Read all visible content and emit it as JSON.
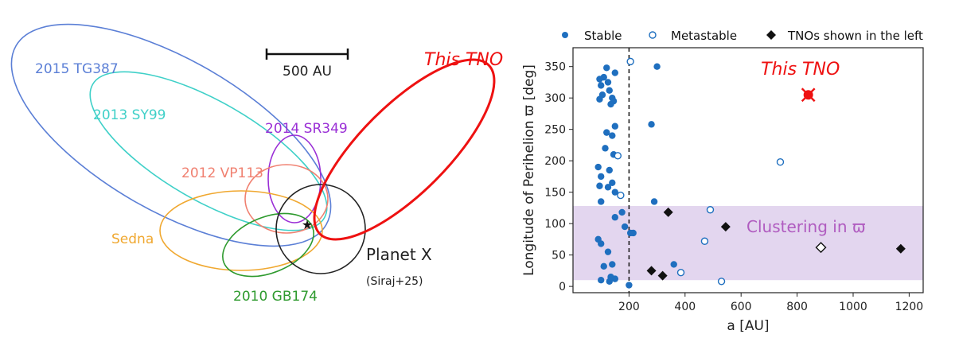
{
  "left_panel": {
    "scale_bar_label": "500 AU",
    "star_label": "",
    "orbits": [
      {
        "name": "2015 TG387",
        "color": "#5b7fd6"
      },
      {
        "name": "2013 SY99",
        "color": "#3fd0c8"
      },
      {
        "name": "2014 SR349",
        "color": "#9a2fd6"
      },
      {
        "name": "2012 VP113",
        "color": "#f08070"
      },
      {
        "name": "Sedna",
        "color": "#f0a830"
      },
      {
        "name": "2010 GB174",
        "color": "#2e9a2e"
      },
      {
        "name": "This TNO",
        "color": "#ee1111"
      }
    ],
    "planet_x": {
      "name": "Planet X",
      "ref": "(Siraj+25)",
      "color": "#222222"
    }
  },
  "chart_data": {
    "type": "scatter",
    "xlabel": "a [AU]",
    "ylabel": "Longitude of Perihelion ϖ [deg]",
    "xlim": [
      0,
      1250
    ],
    "ylim": [
      -10,
      380
    ],
    "xticks": [
      200,
      400,
      600,
      800,
      1000,
      1200
    ],
    "yticks": [
      0,
      50,
      100,
      150,
      200,
      250,
      300,
      350
    ],
    "vline_x": 200,
    "band": {
      "y0": 10,
      "y1": 128,
      "label": "Clustering in ϖ",
      "color": "#e3d6ef",
      "label_color": "#b05cc0"
    },
    "annotation": {
      "text": "This TNO",
      "x": 840,
      "y": 305,
      "color": "#ee1111"
    },
    "legend": {
      "placement": "top",
      "entries": [
        "Stable",
        "Metastable",
        "TNOs shown in the left"
      ]
    },
    "series": [
      {
        "name": "Stable",
        "marker": "filled-circle",
        "color": "#1f6fbf",
        "points": [
          [
            120,
            348
          ],
          [
            150,
            340
          ],
          [
            110,
            333
          ],
          [
            95,
            330
          ],
          [
            125,
            325
          ],
          [
            100,
            320
          ],
          [
            130,
            312
          ],
          [
            105,
            305
          ],
          [
            140,
            300
          ],
          [
            95,
            298
          ],
          [
            145,
            295
          ],
          [
            135,
            290
          ],
          [
            300,
            350
          ],
          [
            150,
            255
          ],
          [
            120,
            245
          ],
          [
            140,
            240
          ],
          [
            280,
            258
          ],
          [
            115,
            220
          ],
          [
            145,
            210
          ],
          [
            90,
            190
          ],
          [
            130,
            185
          ],
          [
            100,
            175
          ],
          [
            140,
            165
          ],
          [
            95,
            160
          ],
          [
            125,
            158
          ],
          [
            150,
            150
          ],
          [
            290,
            135
          ],
          [
            100,
            135
          ],
          [
            175,
            118
          ],
          [
            150,
            110
          ],
          [
            185,
            95
          ],
          [
            205,
            85
          ],
          [
            215,
            85
          ],
          [
            90,
            75
          ],
          [
            100,
            68
          ],
          [
            125,
            55
          ],
          [
            360,
            35
          ],
          [
            140,
            35
          ],
          [
            110,
            32
          ],
          [
            150,
            12
          ],
          [
            100,
            10
          ],
          [
            130,
            8
          ],
          [
            135,
            15
          ],
          [
            200,
            2
          ]
        ]
      },
      {
        "name": "Metastable",
        "marker": "open-circle",
        "color": "#1f6fbf",
        "points": [
          [
            205,
            358
          ],
          [
            160,
            208
          ],
          [
            170,
            145
          ],
          [
            740,
            198
          ],
          [
            490,
            122
          ],
          [
            470,
            72
          ],
          [
            385,
            22
          ],
          [
            530,
            8
          ]
        ]
      },
      {
        "name": "TNOs shown in the left",
        "marker": "filled-diamond",
        "color": "#111111",
        "points": [
          [
            340,
            118
          ],
          [
            545,
            95
          ],
          [
            280,
            25
          ],
          [
            320,
            17
          ],
          [
            1170,
            60
          ]
        ]
      },
      {
        "name": "",
        "marker": "open-diamond",
        "color": "#111111",
        "points": [
          [
            885,
            62
          ]
        ]
      },
      {
        "name": "This TNO",
        "marker": "cross-circle",
        "color": "#ee1111",
        "points": [
          [
            840,
            305
          ]
        ]
      }
    ]
  }
}
